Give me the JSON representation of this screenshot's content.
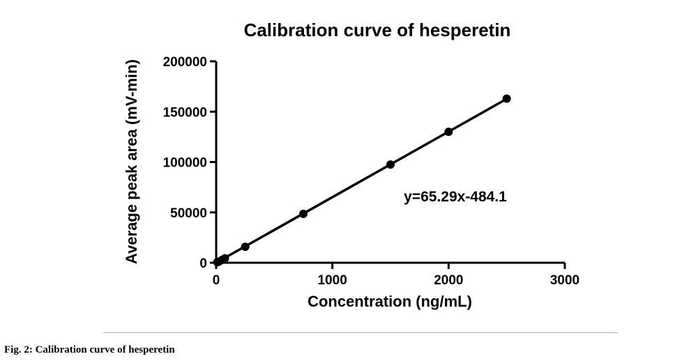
{
  "chart_data": {
    "type": "scatter",
    "title": "Calibration curve of hesperetin",
    "xlabel": "Concentration (ng/mL)",
    "ylabel": "Average peak area (mV-min)",
    "xlim": [
      0,
      3000
    ],
    "ylim": [
      0,
      200000
    ],
    "x_ticks": [
      "0",
      "1000",
      "2000",
      "3000"
    ],
    "y_ticks": [
      "0",
      "50000",
      "100000",
      "150000",
      "200000"
    ],
    "grid": false,
    "series": [
      {
        "x": [
          10,
          25,
          50,
          75,
          250,
          750,
          1500,
          2000,
          2500
        ],
        "y": [
          500,
          1200,
          2800,
          4400,
          15800,
          48500,
          97500,
          130000,
          163000
        ]
      }
    ],
    "trendline": {
      "slope": 65.29,
      "intercept": -484.1
    },
    "annotation": "y=65.29x-484.1"
  },
  "caption": "Fig. 2: Calibration curve of hesperetin"
}
